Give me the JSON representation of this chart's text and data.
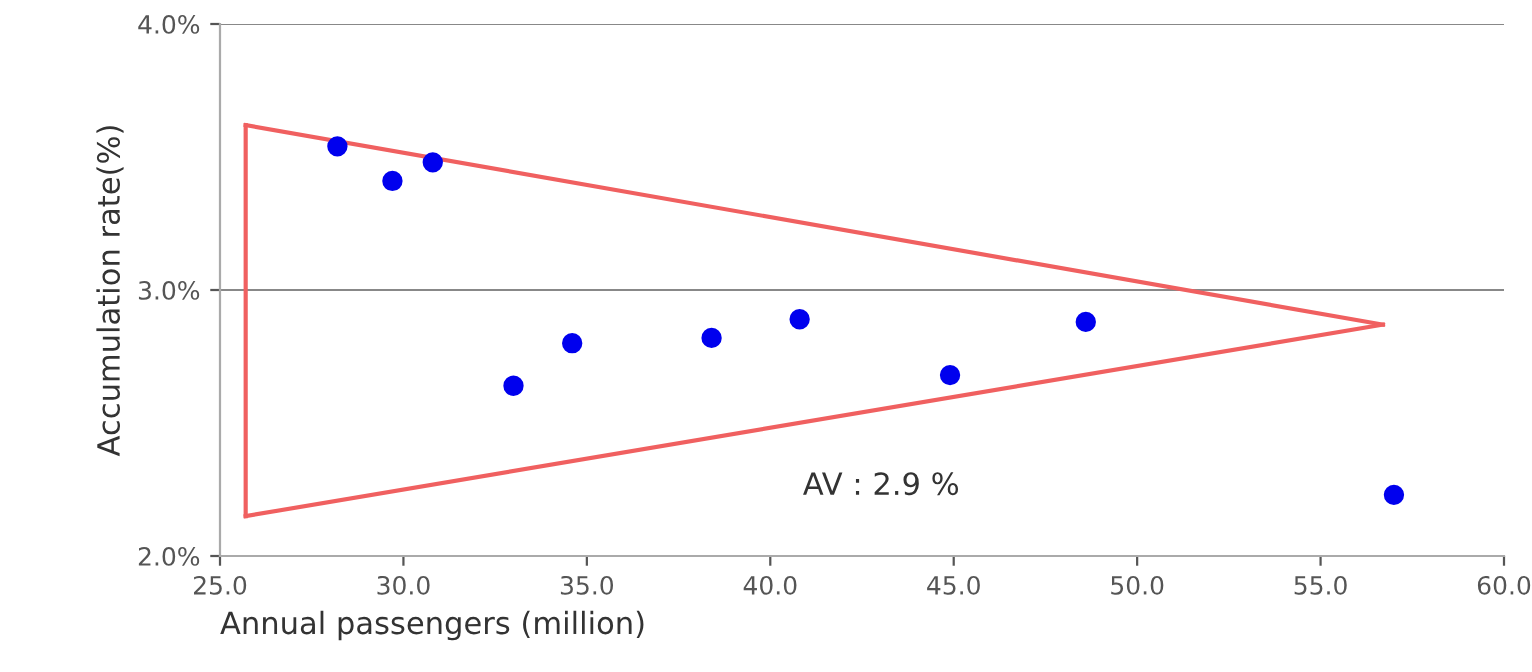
{
  "chart_data": {
    "type": "scatter",
    "xlabel": "Annual passengers (million)",
    "ylabel": "Accumulation rate(%)",
    "xlim": [
      25,
      60
    ],
    "xticks": [
      {
        "value": 25,
        "label": "25.0"
      },
      {
        "value": 30,
        "label": "30.0"
      },
      {
        "value": 35,
        "label": "35.0"
      },
      {
        "value": 40,
        "label": "40.0"
      },
      {
        "value": 45,
        "label": "45.0"
      },
      {
        "value": 50,
        "label": "50.0"
      },
      {
        "value": 55,
        "label": "55.0"
      },
      {
        "value": 60,
        "label": "60.0"
      }
    ],
    "ylim": [
      2.0,
      4.0
    ],
    "yticks": [
      {
        "value": 2.0,
        "label": "2.0%"
      },
      {
        "value": 3.0,
        "label": "3.0%"
      },
      {
        "value": 4.0,
        "label": "4.0%"
      }
    ],
    "grid": "y",
    "marker": "circle",
    "legend": false,
    "series": [
      {
        "color": "#0000ee",
        "x": [
          28.2,
          29.7,
          30.8,
          33.0,
          34.6,
          38.4,
          40.8,
          44.9,
          48.6,
          57.0
        ],
        "values": [
          3.54,
          3.41,
          3.48,
          2.64,
          2.8,
          2.82,
          2.89,
          2.68,
          2.88,
          2.23
        ]
      },
      {
        "type": "line",
        "color": "#f06060",
        "line_style": "solid",
        "marker": "none",
        "x": [
          25.7,
          56.7
        ],
        "values": [
          3.62,
          2.87
        ]
      },
      {
        "type": "line",
        "color": "#f06060",
        "line_style": "solid",
        "marker": "none",
        "x": [
          25.7,
          56.7
        ],
        "values": [
          2.15,
          2.87
        ]
      },
      {
        "type": "line",
        "color": "#f06060",
        "line_style": "solid",
        "marker": "none",
        "x": [
          25.7,
          25.7
        ],
        "values": [
          2.15,
          3.62
        ]
      }
    ],
    "annotations": [
      "AV : 2.9 %"
    ]
  }
}
